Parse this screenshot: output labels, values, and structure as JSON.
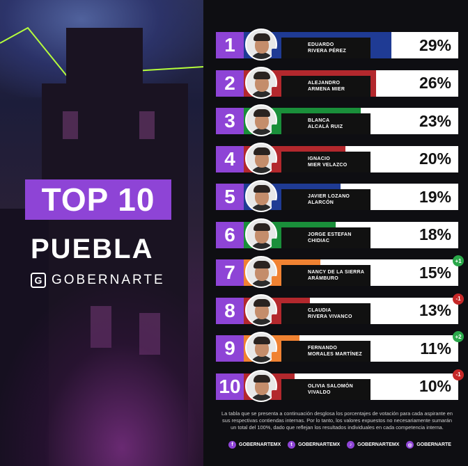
{
  "header": {
    "top_label": "TOP 10",
    "city": "PUEBLA",
    "brand_letter": "G",
    "brand": "GOBERNARTE"
  },
  "colors": {
    "accent": "#8e44d6",
    "PAN": "#1f3b94",
    "MORENA": "#b3282d",
    "PRI": "#1a8f3a",
    "MC": "#f08232",
    "up": "#2aa84a",
    "down": "#c62828"
  },
  "ranking": [
    {
      "rank": "1",
      "name": "EDUARDO\nRIVERA PÉREZ",
      "pct": "29%",
      "value": 29,
      "party": "PAN",
      "change": ""
    },
    {
      "rank": "2",
      "name": "ALEJANDRO\nARMENA MIER",
      "pct": "26%",
      "value": 26,
      "party": "MORENA",
      "change": ""
    },
    {
      "rank": "3",
      "name": "BLANCA\nALCALÁ RUIZ",
      "pct": "23%",
      "value": 23,
      "party": "PRI",
      "change": ""
    },
    {
      "rank": "4",
      "name": "IGNACIO\nMIER VELAZCO",
      "pct": "20%",
      "value": 20,
      "party": "MORENA",
      "change": ""
    },
    {
      "rank": "5",
      "name": "JAVIER LOZANO\nALARCÓN",
      "pct": "19%",
      "value": 19,
      "party": "PAN",
      "change": ""
    },
    {
      "rank": "6",
      "name": "JORGE ESTEFAN\nCHIDIAC",
      "pct": "18%",
      "value": 18,
      "party": "PRI",
      "change": ""
    },
    {
      "rank": "7",
      "name": "NANCY DE LA SIERRA\nARÁMBURO",
      "pct": "15%",
      "value": 15,
      "party": "MC",
      "change": "+1"
    },
    {
      "rank": "8",
      "name": "CLAUDIA\nRIVERA VIVANCO",
      "pct": "13%",
      "value": 13,
      "party": "MORENA",
      "change": "-1"
    },
    {
      "rank": "9",
      "name": "FERNANDO\nMORALES MARTÍNEZ",
      "pct": "11%",
      "value": 11,
      "party": "MC",
      "change": "+2"
    },
    {
      "rank": "10",
      "name": "OLIVIA SALOMÓN\nVIVALDO",
      "pct": "10%",
      "value": 10,
      "party": "MORENA",
      "change": "-1"
    }
  ],
  "footer": {
    "note": "La tabla que se presenta a continuación desglosa los porcentajes de votación para cada aspirante en sus respectivas contiendas internas. Por lo tanto, los valores expuestos no necesariamente sumarán un total del 100%, dado que reflejan los resultados individuales en cada competencia interna."
  },
  "social": [
    {
      "icon": "facebook-icon",
      "glyph": "f",
      "handle": "GOBERNARTEMX"
    },
    {
      "icon": "twitter-icon",
      "glyph": "t",
      "handle": "GOBERNARTEMX"
    },
    {
      "icon": "tiktok-icon",
      "glyph": "♪",
      "handle": "GOBERNARTEMX"
    },
    {
      "icon": "instagram-icon",
      "glyph": "◎",
      "handle": "GOBERNARTE"
    }
  ]
}
